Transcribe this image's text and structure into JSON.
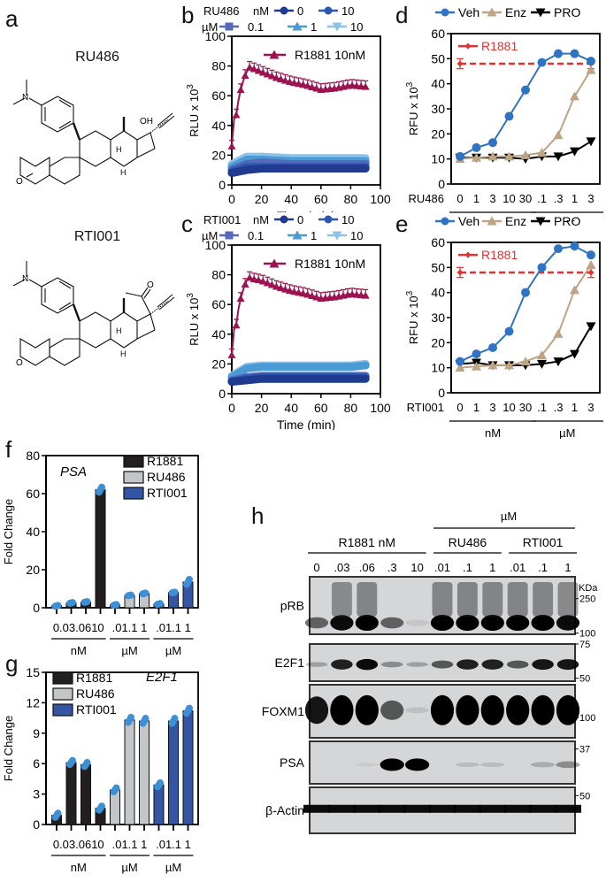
{
  "panels": {
    "a": {
      "letter": "a",
      "compounds": [
        {
          "name": "RU486"
        },
        {
          "name": "RTI001"
        }
      ]
    },
    "b": {
      "letter": "b"
    },
    "c": {
      "letter": "c"
    },
    "d": {
      "letter": "d"
    },
    "e": {
      "letter": "e"
    },
    "f": {
      "letter": "f"
    },
    "g": {
      "letter": "g"
    },
    "h": {
      "letter": "h"
    }
  },
  "colors": {
    "r1881_kinetic": "#9b1451",
    "nM0": "#1f3a8f",
    "nM10": "#2c57b0",
    "uM01": "#5469b8",
    "uM1": "#4a9ad6",
    "uM10": "#8ec2ea",
    "veh": "#2f73c2",
    "enz": "#bca484",
    "pro": "#000000",
    "r1881_ref": "#e8302f",
    "bar_r1881": "#231f20",
    "bar_ru486": "#c3c6c8",
    "bar_rti001": "#3454a4",
    "dot": "#3d8fd6"
  },
  "chart_data": [
    {
      "id": "b",
      "type": "line",
      "title": "",
      "legend": {
        "compound": "RU486",
        "row1_unit": "nM",
        "row2_unit": "µM",
        "entries": [
          "0",
          "10",
          "0.1",
          "1",
          "10"
        ],
        "annotation": "R1881 10nM"
      },
      "xlabel": "Time (min)",
      "ylabel": "RLU x 10^3",
      "xlim": [
        0,
        100
      ],
      "ylim": [
        0,
        100
      ],
      "xticks": [
        0,
        20,
        40,
        60,
        80,
        100
      ],
      "yticks": [
        0,
        20,
        40,
        60,
        80,
        100
      ],
      "series": [
        {
          "name": "R1881 10nM",
          "x": [
            0,
            1.5,
            3,
            4.5,
            6,
            8,
            10,
            12,
            15,
            20,
            25,
            30,
            40,
            50,
            60,
            70,
            80,
            90
          ],
          "y": [
            26,
            44,
            47,
            57,
            64,
            71,
            76,
            79,
            78,
            76,
            74,
            72,
            69,
            67,
            64,
            65,
            67,
            66
          ]
        },
        {
          "name": "RU486 0 nM",
          "x": [
            0,
            10,
            20,
            40,
            60,
            80,
            90
          ],
          "y": [
            8,
            10,
            11,
            11,
            11,
            11,
            11
          ]
        },
        {
          "name": "RU486 10 nM",
          "x": [
            0,
            10,
            20,
            40,
            60,
            80,
            90
          ],
          "y": [
            9,
            12,
            12,
            12,
            12,
            12,
            12
          ]
        },
        {
          "name": "RU486 0.1 µM",
          "x": [
            0,
            10,
            20,
            40,
            60,
            80,
            90
          ],
          "y": [
            10,
            14,
            15,
            14,
            14,
            14,
            14
          ]
        },
        {
          "name": "RU486 1 µM",
          "x": [
            0,
            10,
            20,
            40,
            60,
            80,
            90
          ],
          "y": [
            12,
            17,
            17,
            16,
            16,
            16,
            16
          ]
        },
        {
          "name": "RU486 10 µM",
          "x": [
            0,
            10,
            20,
            40,
            60,
            80,
            90
          ],
          "y": [
            14,
            19,
            19,
            18,
            18,
            18,
            18
          ]
        }
      ]
    },
    {
      "id": "c",
      "type": "line",
      "legend": {
        "compound": "RTI001",
        "row1_unit": "nM",
        "row2_unit": "µM",
        "entries": [
          "0",
          "10",
          "0.1",
          "1",
          "10"
        ],
        "annotation": "R1881 10nM"
      },
      "xlabel": "Time (min)",
      "ylabel": "RLU x 10^3",
      "xlim": [
        0,
        100
      ],
      "ylim": [
        0,
        100
      ],
      "xticks": [
        0,
        20,
        40,
        60,
        80,
        100
      ],
      "yticks": [
        0,
        20,
        40,
        60,
        80,
        100
      ],
      "series": [
        {
          "name": "R1881 10nM",
          "x": [
            0,
            1.5,
            3,
            4.5,
            6,
            8,
            10,
            12,
            15,
            20,
            25,
            30,
            40,
            50,
            60,
            70,
            80,
            90
          ],
          "y": [
            26,
            43,
            46,
            57,
            64,
            71,
            76,
            78,
            77,
            76,
            74,
            72,
            69,
            67,
            64,
            65,
            67,
            66
          ]
        },
        {
          "name": "RTI001 0 nM",
          "x": [
            0,
            10,
            20,
            40,
            60,
            80,
            90
          ],
          "y": [
            8,
            9,
            10,
            10,
            10,
            10,
            10
          ]
        },
        {
          "name": "RTI001 10 nM",
          "x": [
            0,
            10,
            20,
            40,
            60,
            80,
            90
          ],
          "y": [
            8,
            10,
            11,
            11,
            11,
            11,
            11
          ]
        },
        {
          "name": "RTI001 0.1 µM",
          "x": [
            0,
            10,
            20,
            40,
            60,
            80,
            90
          ],
          "y": [
            9,
            11,
            12,
            12,
            12,
            12,
            12
          ]
        },
        {
          "name": "RTI001 1 µM",
          "x": [
            0,
            10,
            20,
            40,
            60,
            80,
            90
          ],
          "y": [
            11,
            17,
            18,
            18,
            18,
            18,
            19
          ]
        },
        {
          "name": "RTI001 10 µM",
          "x": [
            0,
            10,
            20,
            40,
            60,
            80,
            90
          ],
          "y": [
            12,
            18,
            19,
            19,
            19,
            19,
            20
          ]
        }
      ]
    },
    {
      "id": "d",
      "type": "line",
      "legend": [
        "Veh",
        "Enz",
        "PRO"
      ],
      "annotation": "R1881",
      "ylabel": "RFU x 10^3",
      "ylim": [
        0,
        60
      ],
      "yticks": [
        0,
        10,
        20,
        30,
        40,
        50,
        60
      ],
      "x_compound": "RU486",
      "categories": [
        "0",
        "1",
        "3",
        "10",
        "30",
        ".1",
        ".3",
        "1",
        "3"
      ],
      "unit_groups": [
        {
          "label": "nM",
          "from": 0,
          "to": 4
        },
        {
          "label": "µM",
          "from": 5,
          "to": 8
        }
      ],
      "series": [
        {
          "name": "Veh",
          "values": [
            11,
            14.5,
            16.5,
            27,
            37.5,
            48.5,
            52,
            52,
            49
          ]
        },
        {
          "name": "Enz",
          "values": [
            10,
            10.5,
            11,
            11,
            11.5,
            12.5,
            19.5,
            35,
            45.5
          ]
        },
        {
          "name": "PRO",
          "values": [
            10.5,
            10.5,
            10.5,
            10.5,
            10,
            11,
            11,
            13,
            17
          ]
        },
        {
          "name": "R1881",
          "values": [
            48,
            48,
            48,
            48,
            48,
            48,
            48,
            48,
            48
          ]
        }
      ]
    },
    {
      "id": "e",
      "type": "line",
      "legend": [
        "Veh",
        "Enz",
        "PRO"
      ],
      "annotation": "R1881",
      "ylabel": "RFU x 10^3",
      "ylim": [
        0,
        60
      ],
      "yticks": [
        0,
        10,
        20,
        30,
        40,
        50,
        60
      ],
      "x_compound": "RTI001",
      "categories": [
        "0",
        "1",
        "3",
        "10",
        "30",
        ".1",
        ".3",
        "1",
        "3"
      ],
      "unit_groups": [
        {
          "label": "nM",
          "from": 0,
          "to": 4
        },
        {
          "label": "µM",
          "from": 5,
          "to": 8
        }
      ],
      "series": [
        {
          "name": "Veh",
          "values": [
            12.5,
            15.5,
            18,
            24.5,
            40,
            50,
            57.5,
            58.5,
            55
          ]
        },
        {
          "name": "Enz",
          "values": [
            10,
            10.5,
            11,
            11,
            12.5,
            15,
            23.5,
            41,
            51
          ]
        },
        {
          "name": "PRO",
          "values": [
            11.5,
            12,
            11,
            11,
            11,
            11.5,
            12.5,
            15.5,
            26.5
          ]
        },
        {
          "name": "R1881",
          "values": [
            48,
            48,
            48,
            48,
            48,
            48,
            48,
            48,
            48
          ]
        }
      ]
    },
    {
      "id": "f",
      "type": "bar",
      "gene": "PSA",
      "ylabel": "Fold Change",
      "ylim": [
        0,
        80
      ],
      "yticks": [
        0,
        20,
        40,
        60,
        80
      ],
      "legend": [
        "R1881",
        "RU486",
        "RTI001"
      ],
      "groups": [
        {
          "name": "R1881",
          "unit": "nM",
          "categories": [
            "0",
            ".03",
            ".06",
            "10"
          ],
          "values": [
            1,
            2.5,
            3,
            62
          ]
        },
        {
          "name": "RU486",
          "unit": "µM",
          "categories": [
            ".01",
            ".1",
            "1"
          ],
          "values": [
            1.5,
            6.5,
            7.5
          ]
        },
        {
          "name": "RTI001",
          "unit": "µM",
          "categories": [
            ".01",
            ".1",
            "1"
          ],
          "values": [
            2,
            8,
            13.5
          ]
        }
      ],
      "tick_label_text": [
        "0.03.0610",
        ".01.1  1",
        ".01.1  1"
      ]
    },
    {
      "id": "g",
      "type": "bar",
      "gene": "E2F1",
      "ylabel": "Fold Change",
      "ylim": [
        0,
        15
      ],
      "yticks": [
        0,
        3,
        6,
        9,
        12,
        15
      ],
      "legend": [
        "R1881",
        "RU486",
        "RTI001"
      ],
      "groups": [
        {
          "name": "R1881",
          "unit": "nM",
          "categories": [
            "0",
            ".03",
            ".06",
            "10"
          ],
          "values": [
            0.9,
            6.1,
            5.9,
            1.6
          ]
        },
        {
          "name": "RU486",
          "unit": "µM",
          "categories": [
            ".01",
            ".1",
            "1"
          ],
          "values": [
            3.4,
            10.3,
            10.2
          ]
        },
        {
          "name": "RTI001",
          "unit": "µM",
          "categories": [
            ".01",
            ".1",
            "1"
          ],
          "values": [
            3.9,
            10.2,
            11.2
          ]
        }
      ],
      "tick_label_text": [
        "0.03.0610",
        ".01.1  1",
        ".01.1  1"
      ]
    }
  ],
  "blot": {
    "top_unit": "µM",
    "groups": [
      {
        "label": "R1881 nM",
        "lanes": 5
      },
      {
        "label": "RU486",
        "lanes": 3
      },
      {
        "label": "RTI001",
        "lanes": 3
      }
    ],
    "lanes": [
      "0",
      ".03",
      ".06",
      ".3",
      "10",
      ".01",
      ".1",
      "1",
      ".01",
      ".1",
      "1"
    ],
    "kda_label": "KDa",
    "rows": [
      {
        "label": "pRB",
        "markers": [
          {
            "label": "250",
            "pos": 0.38
          },
          {
            "label": "100",
            "pos": 0.98
          }
        ]
      },
      {
        "label": "E2F1",
        "markers": [
          {
            "label": "75",
            "pos": 0.0
          },
          {
            "label": "50",
            "pos": 0.92
          }
        ]
      },
      {
        "label": "FOXM1",
        "markers": [
          {
            "label": "100",
            "pos": 0.62
          }
        ]
      },
      {
        "label": "PSA",
        "markers": [
          {
            "label": "37",
            "pos": 0.18
          }
        ]
      },
      {
        "label": "β-Actin",
        "markers": [
          {
            "label": "50",
            "pos": 0.18
          }
        ]
      }
    ],
    "intensity": {
      "pRB": [
        0.55,
        0.95,
        1.0,
        0.55,
        0.08,
        1.0,
        1.0,
        1.0,
        1.0,
        1.0,
        0.95
      ],
      "E2F1": [
        0.25,
        0.85,
        0.95,
        0.35,
        0.25,
        0.6,
        0.85,
        0.85,
        0.6,
        0.9,
        0.9
      ],
      "FOXM1": [
        0.9,
        1.0,
        1.0,
        0.6,
        0.1,
        1.0,
        1.0,
        1.0,
        1.0,
        1.0,
        1.0
      ],
      "PSA": [
        0.0,
        0.0,
        0.05,
        1.0,
        1.0,
        0.0,
        0.12,
        0.12,
        0.0,
        0.2,
        0.35
      ],
      "β-Actin": [
        0.95,
        0.95,
        0.95,
        0.95,
        0.95,
        0.95,
        0.95,
        0.95,
        0.95,
        0.95,
        0.95
      ]
    }
  }
}
